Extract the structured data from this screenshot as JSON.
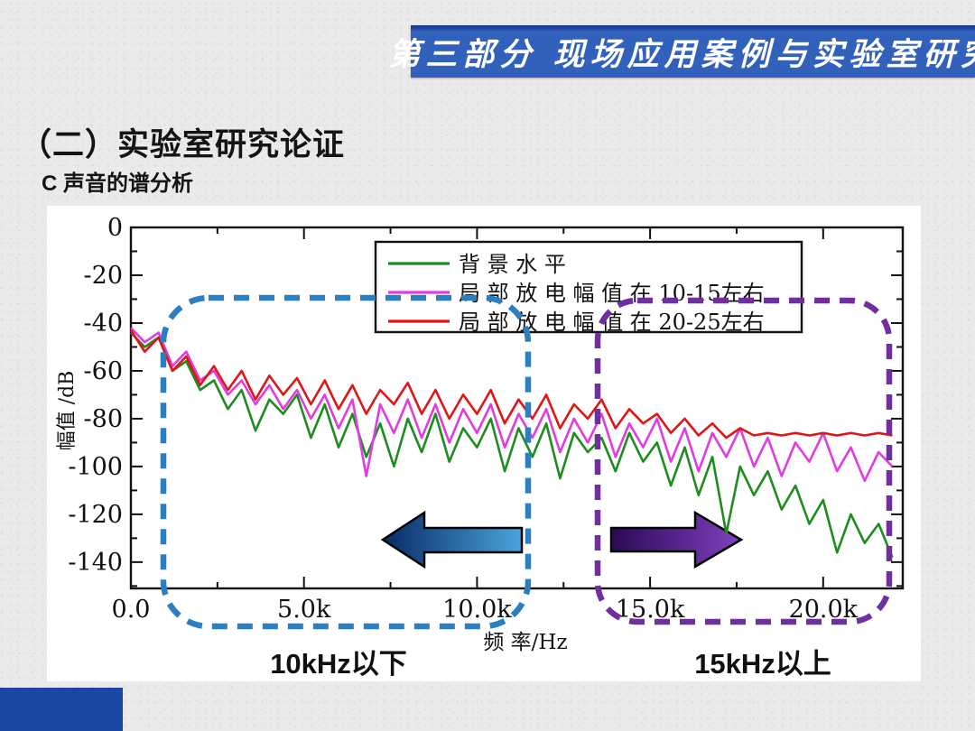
{
  "slide": {
    "header_banner": "第三部分 现场应用案例与实验室研究",
    "title": "（二）实验室研究论证",
    "subtitle": "C 声音的谱分析",
    "region_label_left": "10kHz以下",
    "region_label_right": "15kHz以上"
  },
  "colors": {
    "banner_blue": "#3161ba",
    "corner_blue": "#1b46a3",
    "slide_background": "#eaeaec",
    "chart_background": "#ffffff",
    "axis": "#111111",
    "series_green": "#1e8c1e",
    "series_magenta": "#e03ce0",
    "series_red": "#e01515",
    "dashed_box_blue": "#2b7fc0",
    "dashed_box_purple": "#6f2fa0",
    "arrow_blue_dark": "#082a66",
    "arrow_blue_light": "#4ba4da",
    "arrow_purple_dark": "#2a0a55",
    "arrow_purple_light": "#8040c0"
  },
  "chart_data": {
    "type": "line",
    "title": "",
    "xlabel": "频 率/Hz",
    "ylabel": "幅值 /dB",
    "x_unit": "kHz",
    "xlim": [
      0,
      22.3
    ],
    "ylim": [
      -151,
      0
    ],
    "grid": false,
    "legend_position": "top-center",
    "x_ticks": {
      "values": [
        0,
        5,
        10,
        15,
        20
      ],
      "labels": [
        "0.0",
        "5.0k",
        "10.0k",
        "15.0k",
        "20.0k"
      ]
    },
    "x_minor_step": 2.5,
    "y_ticks": {
      "values": [
        0,
        -20,
        -40,
        -60,
        -80,
        -100,
        -120,
        -140
      ],
      "labels": [
        "0",
        "-20",
        "-40",
        "-60",
        "-80",
        "-100",
        "-120",
        "-140"
      ]
    },
    "y_minor_step": 10,
    "x": [
      0,
      0.4,
      0.8,
      1.2,
      1.6,
      2.0,
      2.4,
      2.8,
      3.2,
      3.6,
      4.0,
      4.4,
      4.8,
      5.2,
      5.6,
      6.0,
      6.4,
      6.8,
      7.2,
      7.6,
      8.0,
      8.4,
      8.8,
      9.2,
      9.6,
      10.0,
      10.4,
      10.8,
      11.2,
      11.6,
      12.0,
      12.4,
      12.8,
      13.2,
      13.6,
      14.0,
      14.4,
      14.8,
      15.2,
      15.6,
      16.0,
      16.4,
      16.8,
      17.2,
      17.6,
      18.0,
      18.4,
      18.8,
      19.2,
      19.6,
      20.0,
      20.4,
      20.8,
      21.2,
      21.6,
      22.0
    ],
    "series": [
      {
        "name": "背 景 水  平",
        "color": "#1e8c1e",
        "values": [
          -44,
          -50,
          -46,
          -60,
          -56,
          -68,
          -64,
          -76,
          -68,
          -85,
          -72,
          -78,
          -70,
          -88,
          -74,
          -92,
          -78,
          -96,
          -82,
          -100,
          -80,
          -94,
          -78,
          -98,
          -84,
          -92,
          -80,
          -102,
          -84,
          -96,
          -82,
          -105,
          -86,
          -94,
          -88,
          -102,
          -86,
          -98,
          -90,
          -108,
          -92,
          -112,
          -96,
          -128,
          -100,
          -112,
          -102,
          -118,
          -108,
          -124,
          -114,
          -136,
          -120,
          -132,
          -124,
          -138
        ]
      },
      {
        "name": "局 部 放 电 幅 值  在  10-15左右",
        "color": "#e03ce0",
        "values": [
          -42,
          -48,
          -44,
          -58,
          -52,
          -64,
          -60,
          -70,
          -64,
          -74,
          -66,
          -76,
          -68,
          -80,
          -70,
          -84,
          -72,
          -104,
          -74,
          -86,
          -72,
          -88,
          -74,
          -90,
          -76,
          -86,
          -74,
          -92,
          -78,
          -88,
          -76,
          -94,
          -80,
          -90,
          -78,
          -96,
          -82,
          -92,
          -80,
          -98,
          -84,
          -102,
          -86,
          -96,
          -84,
          -100,
          -88,
          -104,
          -90,
          -98,
          -86,
          -102,
          -92,
          -106,
          -94,
          -100
        ]
      },
      {
        "name": "局 部 放 电 幅 值  在  20-25左右",
        "color": "#e01515",
        "values": [
          -43,
          -52,
          -46,
          -60,
          -54,
          -66,
          -58,
          -68,
          -60,
          -72,
          -62,
          -70,
          -63,
          -74,
          -64,
          -76,
          -66,
          -78,
          -68,
          -74,
          -65,
          -78,
          -68,
          -80,
          -70,
          -78,
          -68,
          -82,
          -72,
          -80,
          -70,
          -84,
          -74,
          -80,
          -72,
          -84,
          -76,
          -82,
          -78,
          -86,
          -80,
          -87,
          -82,
          -88,
          -84,
          -87,
          -86,
          -87,
          -86,
          -87,
          -86,
          -87,
          -86,
          -87,
          -86,
          -87
        ]
      }
    ],
    "annotations": [
      {
        "kind": "dashed-region",
        "label": "10kHz以下",
        "color": "#2b7fc0",
        "side": "left"
      },
      {
        "kind": "dashed-region",
        "label": "15kHz以上",
        "color": "#6f2fa0",
        "side": "right"
      },
      {
        "kind": "arrow",
        "direction": "left",
        "color": "#2b7fc0"
      },
      {
        "kind": "arrow",
        "direction": "right",
        "color": "#6f2fa0"
      }
    ]
  }
}
